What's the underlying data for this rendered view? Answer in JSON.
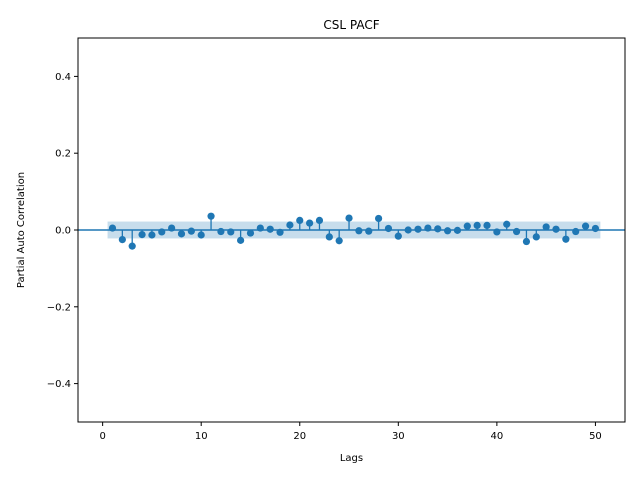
{
  "chart_data": {
    "type": "scatter",
    "title": "CSL PACF",
    "xlabel": "Lags",
    "ylabel": "Partial Auto Correlation",
    "xlim": [
      -2.5,
      53
    ],
    "ylim": [
      -0.5,
      0.5
    ],
    "xticks": [
      0,
      10,
      20,
      30,
      40,
      50
    ],
    "xtick_labels": [
      "0",
      "10",
      "20",
      "30",
      "40",
      "50"
    ],
    "yticks": [
      -0.4,
      -0.2,
      0.0,
      0.2,
      0.4
    ],
    "ytick_labels": [
      "−0.4",
      "−0.2",
      "0.0",
      "0.2",
      "0.4"
    ],
    "confidence_band": [
      -0.022,
      0.022
    ],
    "grid": false,
    "series": [
      {
        "x": [
          1,
          2,
          3,
          4,
          5,
          6,
          7,
          8,
          9,
          10,
          11,
          12,
          13,
          14,
          15,
          16,
          17,
          18,
          19,
          20,
          21,
          22,
          23,
          24,
          25,
          26,
          27,
          28,
          29,
          30,
          31,
          32,
          33,
          34,
          35,
          36,
          37,
          38,
          39,
          40,
          41,
          42,
          43,
          44,
          45,
          46,
          47,
          48,
          49,
          50
        ],
        "values": [
          0.005,
          -0.025,
          -0.042,
          -0.012,
          -0.013,
          -0.005,
          0.005,
          -0.01,
          -0.003,
          -0.013,
          0.036,
          -0.004,
          -0.005,
          -0.027,
          -0.008,
          0.005,
          0.002,
          -0.006,
          0.013,
          0.025,
          0.018,
          0.025,
          -0.018,
          -0.028,
          0.031,
          -0.002,
          -0.003,
          0.03,
          0.004,
          -0.016,
          0.0,
          0.002,
          0.005,
          0.003,
          -0.002,
          -0.001,
          0.01,
          0.012,
          0.012,
          -0.005,
          0.015,
          -0.004,
          -0.03,
          -0.018,
          0.008,
          0.002,
          -0.024,
          -0.004,
          0.01,
          0.004
        ]
      }
    ],
    "colors": {
      "series": "#1f77b4",
      "band": "#1f77b4"
    }
  }
}
